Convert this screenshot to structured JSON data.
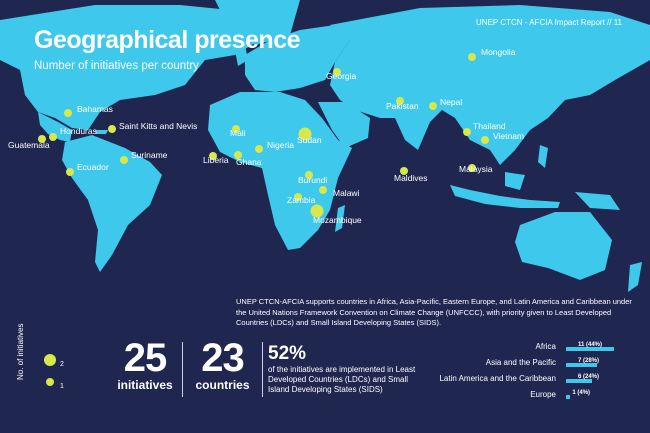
{
  "header": {
    "title": "Geographical presence",
    "subtitle": "Number of initiatives per country",
    "report": "UNEP CTCN - AFCIA Impact Report // 11"
  },
  "colors": {
    "background": "#1f2650",
    "land": "#3ec8ec",
    "marker": "#d6e84a",
    "text": "#ffffff"
  },
  "countries": [
    {
      "name": "Mongolia",
      "initiatives": 1
    },
    {
      "name": "Georgia",
      "initiatives": 1
    },
    {
      "name": "Bahamas",
      "initiatives": 1
    },
    {
      "name": "Honduras",
      "initiatives": 1
    },
    {
      "name": "Guatemala",
      "initiatives": 1
    },
    {
      "name": "Saint Kitts and Nevis",
      "initiatives": 1
    },
    {
      "name": "Suriname",
      "initiatives": 1
    },
    {
      "name": "Ecuador",
      "initiatives": 1
    },
    {
      "name": "Mali",
      "initiatives": 1
    },
    {
      "name": "Liberia",
      "initiatives": 1
    },
    {
      "name": "Ghana",
      "initiatives": 1
    },
    {
      "name": "Nigeria",
      "initiatives": 1
    },
    {
      "name": "Sudan",
      "initiatives": 2
    },
    {
      "name": "Burundi",
      "initiatives": 1
    },
    {
      "name": "Malawi",
      "initiatives": 1
    },
    {
      "name": "Zambia",
      "initiatives": 1
    },
    {
      "name": "Mozambique",
      "initiatives": 2
    },
    {
      "name": "Pakistan",
      "initiatives": 1
    },
    {
      "name": "Nepal",
      "initiatives": 1
    },
    {
      "name": "Maldives",
      "initiatives": 1
    },
    {
      "name": "Thailand",
      "initiatives": 1
    },
    {
      "name": "Vietnam",
      "initiatives": 1
    },
    {
      "name": "Malaysia",
      "initiatives": 1
    }
  ],
  "intro": "UNEP CTCN-AFCIA supports countries in Africa, Asia-Pacific, Eastern Europe, and Latin America and Caribbean under the United Nations Framework Convention on Climate Change (UNFCCC), with priority given to Least Developed Countries (LDCs) and Small Island Developing States (SIDS).",
  "legend": {
    "title": "No. of initiatives",
    "large": "2",
    "small": "1"
  },
  "stats": {
    "initiatives": {
      "value": "25",
      "label": "initiatives"
    },
    "countries": {
      "value": "23",
      "label": "countries"
    },
    "ldc_share": {
      "value": "52%",
      "label": "of the initiatives are implemented in Least Developed Countries (LDCs) and Small Island Developing States (SIDS)"
    }
  },
  "chart_data": {
    "type": "bar",
    "categories": [
      "Africa",
      "Asia and the Pacific",
      "Latin America and the Caribbean",
      "Europe"
    ],
    "values": [
      11,
      7,
      6,
      1
    ],
    "value_labels": [
      "11 (44%)",
      "7 (28%)",
      "6 (24%)",
      "1 (4%)"
    ],
    "percent": [
      44,
      28,
      24,
      4
    ]
  }
}
